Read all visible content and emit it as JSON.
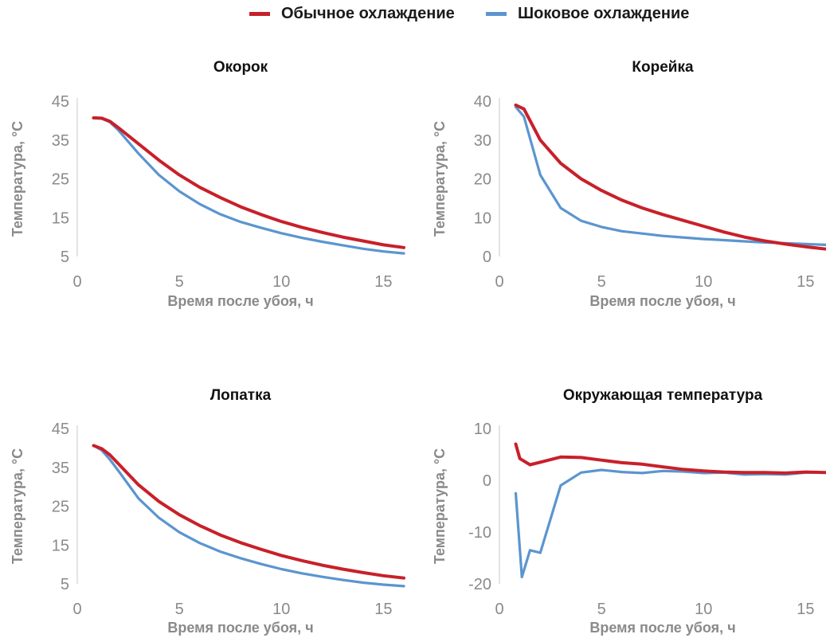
{
  "legend": [
    {
      "name": "Обычное охлаждение",
      "color": "#c8202a"
    },
    {
      "name": "Шоковое охлаждение",
      "color": "#5b95cf"
    }
  ],
  "chart_data": [
    {
      "type": "line",
      "title": "Окорок",
      "xlabel": "Время после убоя, ч",
      "ylabel": "Температура, °C",
      "xlim": [
        0,
        16
      ],
      "ylim": [
        5,
        45
      ],
      "xticks": [
        0,
        5,
        10,
        15
      ],
      "yticks": [
        5,
        15,
        25,
        35,
        45
      ],
      "series": [
        {
          "name": "Обычное охлаждение",
          "color": "#c8202a",
          "x": [
            0.8,
            1.2,
            1.6,
            2,
            3,
            4,
            5,
            6,
            7,
            8,
            9,
            10,
            11,
            12,
            13,
            14,
            15,
            16
          ],
          "y": [
            40.7,
            40.6,
            39.8,
            38.2,
            34.0,
            29.8,
            26.0,
            22.8,
            20.2,
            17.8,
            15.8,
            14.0,
            12.5,
            11.2,
            10.0,
            9.0,
            8.0,
            7.3
          ]
        },
        {
          "name": "Шоковое охлаждение",
          "color": "#5b95cf",
          "x": [
            0.8,
            1.2,
            1.6,
            2,
            3,
            4,
            5,
            6,
            7,
            8,
            9,
            10,
            11,
            12,
            13,
            14,
            15,
            16
          ],
          "y": [
            40.7,
            40.5,
            39.6,
            37.6,
            31.5,
            26.0,
            21.8,
            18.5,
            15.9,
            13.9,
            12.4,
            11.0,
            9.8,
            8.8,
            7.9,
            7.0,
            6.3,
            5.8
          ]
        }
      ]
    },
    {
      "type": "line",
      "title": "Корейка",
      "xlabel": "Время после убоя, ч",
      "ylabel": "Температура, °C",
      "xlim": [
        0,
        16
      ],
      "ylim": [
        0,
        40
      ],
      "xticks": [
        0,
        5,
        10,
        15
      ],
      "yticks": [
        0,
        10,
        20,
        30,
        40
      ],
      "series": [
        {
          "name": "Обычное охлаждение",
          "color": "#c8202a",
          "x": [
            0.8,
            1.2,
            2,
            3,
            4,
            5,
            6,
            7,
            8,
            9,
            10,
            11,
            12,
            13,
            14,
            15,
            16
          ],
          "y": [
            39.0,
            38.0,
            30.0,
            24.0,
            20.0,
            17.0,
            14.5,
            12.5,
            10.8,
            9.3,
            7.8,
            6.3,
            5.0,
            4.0,
            3.2,
            2.5,
            1.9
          ]
        },
        {
          "name": "Шоковое охлаждение",
          "color": "#5b95cf",
          "x": [
            0.8,
            1.2,
            2,
            3,
            4,
            5,
            6,
            7,
            8,
            9,
            10,
            11,
            12,
            13,
            14,
            15,
            16
          ],
          "y": [
            38.5,
            36.0,
            21.0,
            12.5,
            9.2,
            7.6,
            6.5,
            5.9,
            5.3,
            4.9,
            4.5,
            4.2,
            3.9,
            3.6,
            3.4,
            3.2,
            3.0
          ]
        }
      ]
    },
    {
      "type": "line",
      "title": "Лопатка",
      "xlabel": "Время после убоя, ч",
      "ylabel": "Температура, °C",
      "xlim": [
        0,
        16
      ],
      "ylim": [
        5,
        45
      ],
      "xticks": [
        0,
        5,
        10,
        15
      ],
      "yticks": [
        5,
        15,
        25,
        35,
        45
      ],
      "series": [
        {
          "name": "Обычное охлаждение",
          "color": "#c8202a",
          "x": [
            0.8,
            1.2,
            1.6,
            2,
            3,
            4,
            5,
            6,
            7,
            8,
            9,
            10,
            11,
            12,
            13,
            14,
            15,
            16
          ],
          "y": [
            40.6,
            39.8,
            38.2,
            36.0,
            30.5,
            26.2,
            22.8,
            20.0,
            17.6,
            15.6,
            13.9,
            12.3,
            11.0,
            9.8,
            8.8,
            7.9,
            7.1,
            6.5
          ]
        },
        {
          "name": "Шоковое охлаждение",
          "color": "#5b95cf",
          "x": [
            0.8,
            1.2,
            1.6,
            2,
            3,
            4,
            5,
            6,
            7,
            8,
            9,
            10,
            11,
            12,
            13,
            14,
            15,
            16
          ],
          "y": [
            40.6,
            39.4,
            37.0,
            34.2,
            27.0,
            22.0,
            18.3,
            15.5,
            13.3,
            11.6,
            10.1,
            8.8,
            7.7,
            6.8,
            6.0,
            5.3,
            4.8,
            4.4
          ]
        }
      ]
    },
    {
      "type": "line",
      "title": "Окружающая температура",
      "xlabel": "Время после убоя, ч",
      "ylabel": "Температура, °C",
      "xlim": [
        0,
        16
      ],
      "ylim": [
        -20,
        10
      ],
      "xticks": [
        0,
        5,
        10,
        15
      ],
      "yticks": [
        -20,
        -10,
        0,
        10
      ],
      "series": [
        {
          "name": "Обычное охлаждение",
          "color": "#c8202a",
          "x": [
            0.8,
            1.0,
            1.5,
            2,
            3,
            4,
            5,
            6,
            7,
            8,
            9,
            10,
            11,
            12,
            13,
            14,
            15,
            16
          ],
          "y": [
            7.0,
            4.2,
            3.0,
            3.5,
            4.5,
            4.4,
            3.9,
            3.4,
            3.1,
            2.6,
            2.1,
            1.8,
            1.6,
            1.5,
            1.5,
            1.4,
            1.6,
            1.5
          ]
        },
        {
          "name": "Шоковое охлаждение",
          "color": "#5b95cf",
          "x": [
            0.8,
            1.1,
            1.5,
            2,
            3,
            4,
            5,
            6,
            7,
            8,
            9,
            10,
            11,
            12,
            13,
            14,
            15,
            16
          ],
          "y": [
            -2.5,
            -18.7,
            -13.5,
            -14.0,
            -1.0,
            1.5,
            2.0,
            1.6,
            1.4,
            1.8,
            1.7,
            1.4,
            1.5,
            1.1,
            1.2,
            1.1,
            1.5,
            1.5
          ]
        }
      ]
    }
  ]
}
